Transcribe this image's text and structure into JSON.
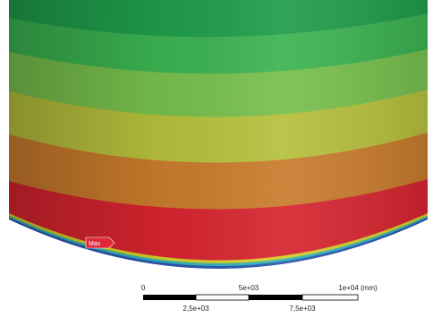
{
  "max_label": "Max",
  "scale_bar": {
    "top_labels": [
      "0",
      "5e+03",
      "1e+04 (mm)"
    ],
    "bottom_labels": [
      "2,5e+03",
      "7,5e+03"
    ]
  }
}
